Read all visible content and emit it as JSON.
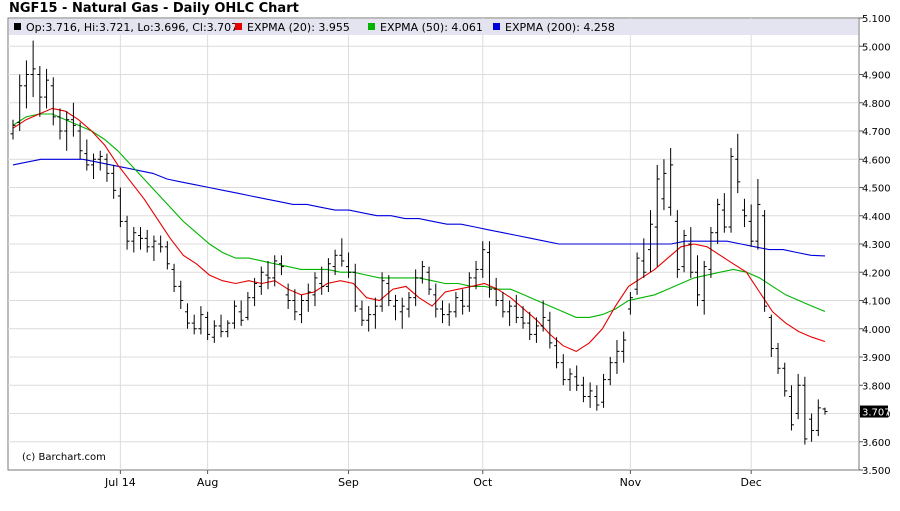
{
  "chart_data": {
    "type": "ohlc",
    "title": "NGF15 - Natural Gas - Daily OHLC Chart",
    "credit": "(c) Barchart.com",
    "legend": [
      {
        "key": "quote",
        "label": "Op:3.716, Hi:3.721, Lo:3.696, Cl:3.707",
        "color": "#000000"
      },
      {
        "key": "ema20",
        "label": "EXPMA (20): 3.955",
        "color": "#e60000"
      },
      {
        "key": "ema50",
        "label": "EXPMA (50): 4.061",
        "color": "#00b400"
      },
      {
        "key": "ema200",
        "label": "EXPMA (200): 4.258",
        "color": "#0000dd"
      }
    ],
    "last_price_label": "3.707",
    "ylim": [
      3.5,
      5.1
    ],
    "y_ticks": [
      "3.500",
      "3.600",
      "3.700",
      "3.800",
      "3.900",
      "4.000",
      "4.100",
      "4.200",
      "4.300",
      "4.400",
      "4.500",
      "4.600",
      "4.700",
      "4.800",
      "4.900",
      "5.000",
      "5.100"
    ],
    "x_ticks": [
      {
        "label": "Jul 14",
        "index": 16
      },
      {
        "label": "Aug",
        "index": 29
      },
      {
        "label": "Sep",
        "index": 50
      },
      {
        "label": "Oct",
        "index": 70
      },
      {
        "label": "Nov",
        "index": 92
      },
      {
        "label": "Dec",
        "index": 110
      }
    ],
    "bar_count": 122,
    "bars": [
      [
        4.69,
        4.74,
        4.67,
        4.72
      ],
      [
        4.73,
        4.9,
        4.7,
        4.86
      ],
      [
        4.86,
        4.95,
        4.78,
        4.9
      ],
      [
        4.9,
        5.02,
        4.82,
        4.92
      ],
      [
        4.9,
        4.93,
        4.75,
        4.82
      ],
      [
        4.82,
        4.92,
        4.78,
        4.88
      ],
      [
        4.86,
        4.89,
        4.72,
        4.75
      ],
      [
        4.75,
        4.78,
        4.67,
        4.7
      ],
      [
        4.7,
        4.77,
        4.63,
        4.74
      ],
      [
        4.74,
        4.8,
        4.68,
        4.72
      ],
      [
        4.7,
        4.73,
        4.6,
        4.63
      ],
      [
        4.62,
        4.67,
        4.56,
        4.58
      ],
      [
        4.58,
        4.62,
        4.53,
        4.6
      ],
      [
        4.6,
        4.63,
        4.56,
        4.61
      ],
      [
        4.6,
        4.62,
        4.52,
        4.55
      ],
      [
        4.55,
        4.58,
        4.46,
        4.49
      ],
      [
        4.47,
        4.5,
        4.36,
        4.38
      ],
      [
        4.38,
        4.4,
        4.28,
        4.31
      ],
      [
        4.31,
        4.36,
        4.27,
        4.34
      ],
      [
        4.33,
        4.36,
        4.28,
        4.32
      ],
      [
        4.32,
        4.35,
        4.27,
        4.29
      ],
      [
        4.29,
        4.33,
        4.24,
        4.31
      ],
      [
        4.3,
        4.33,
        4.27,
        4.29
      ],
      [
        4.29,
        4.31,
        4.21,
        4.23
      ],
      [
        4.21,
        4.23,
        4.13,
        4.15
      ],
      [
        4.15,
        4.17,
        4.07,
        4.1
      ],
      [
        4.06,
        4.09,
        4.0,
        4.02
      ],
      [
        4.02,
        4.05,
        3.98,
        4.0
      ],
      [
        4.0,
        4.08,
        3.98,
        4.05
      ],
      [
        4.04,
        4.06,
        3.96,
        3.98
      ],
      [
        3.97,
        4.03,
        3.95,
        4.01
      ],
      [
        4.01,
        4.05,
        3.97,
        3.99
      ],
      [
        3.99,
        4.03,
        3.97,
        4.02
      ],
      [
        4.02,
        4.1,
        4.0,
        4.08
      ],
      [
        4.06,
        4.1,
        4.01,
        4.03
      ],
      [
        4.04,
        4.13,
        4.03,
        4.11
      ],
      [
        4.11,
        4.18,
        4.08,
        4.16
      ],
      [
        4.15,
        4.22,
        4.12,
        4.2
      ],
      [
        4.19,
        4.24,
        4.14,
        4.18
      ],
      [
        4.18,
        4.26,
        4.15,
        4.24
      ],
      [
        4.23,
        4.26,
        4.19,
        4.22
      ],
      [
        4.12,
        4.16,
        4.07,
        4.1
      ],
      [
        4.1,
        4.14,
        4.03,
        4.06
      ],
      [
        4.05,
        4.12,
        4.02,
        4.1
      ],
      [
        4.1,
        4.16,
        4.06,
        4.13
      ],
      [
        4.12,
        4.2,
        4.08,
        4.18
      ],
      [
        4.16,
        4.22,
        4.12,
        4.15
      ],
      [
        4.15,
        4.25,
        4.13,
        4.23
      ],
      [
        4.22,
        4.28,
        4.19,
        4.26
      ],
      [
        4.26,
        4.32,
        4.22,
        4.24
      ],
      [
        4.22,
        4.27,
        4.18,
        4.2
      ],
      [
        4.2,
        4.23,
        4.06,
        4.08
      ],
      [
        4.07,
        4.1,
        4.01,
        4.03
      ],
      [
        4.03,
        4.08,
        3.99,
        4.05
      ],
      [
        4.05,
        4.11,
        4.0,
        4.08
      ],
      [
        4.08,
        4.2,
        4.06,
        4.17
      ],
      [
        4.16,
        4.19,
        4.08,
        4.1
      ],
      [
        4.08,
        4.12,
        4.03,
        4.1
      ],
      [
        4.06,
        4.11,
        4.0,
        4.08
      ],
      [
        4.07,
        4.13,
        4.04,
        4.11
      ],
      [
        4.11,
        4.21,
        4.08,
        4.18
      ],
      [
        4.18,
        4.24,
        4.16,
        4.22
      ],
      [
        4.2,
        4.22,
        4.12,
        4.14
      ],
      [
        4.12,
        4.16,
        4.04,
        4.07
      ],
      [
        4.07,
        4.1,
        4.02,
        4.05
      ],
      [
        4.05,
        4.09,
        4.01,
        4.06
      ],
      [
        4.06,
        4.13,
        4.04,
        4.11
      ],
      [
        4.1,
        4.14,
        4.05,
        4.08
      ],
      [
        4.08,
        4.2,
        4.06,
        4.18
      ],
      [
        4.18,
        4.24,
        4.14,
        4.21
      ],
      [
        4.21,
        4.31,
        4.18,
        4.28
      ],
      [
        4.27,
        4.31,
        4.11,
        4.14
      ],
      [
        4.14,
        4.18,
        4.08,
        4.1
      ],
      [
        4.1,
        4.13,
        4.04,
        4.06
      ],
      [
        4.06,
        4.1,
        4.01,
        4.08
      ],
      [
        4.08,
        4.12,
        4.02,
        4.04
      ],
      [
        4.04,
        4.08,
        4.0,
        4.02
      ],
      [
        4.02,
        4.06,
        3.96,
        3.98
      ],
      [
        3.98,
        4.04,
        3.95,
        4.01
      ],
      [
        4.01,
        4.1,
        3.99,
        4.04
      ],
      [
        4.03,
        4.06,
        3.93,
        3.95
      ],
      [
        3.94,
        3.97,
        3.86,
        3.88
      ],
      [
        3.88,
        3.91,
        3.8,
        3.82
      ],
      [
        3.82,
        3.86,
        3.78,
        3.84
      ],
      [
        3.83,
        3.87,
        3.78,
        3.8
      ],
      [
        3.8,
        3.83,
        3.74,
        3.76
      ],
      [
        3.76,
        3.81,
        3.72,
        3.78
      ],
      [
        3.76,
        3.8,
        3.71,
        3.73
      ],
      [
        3.74,
        3.84,
        3.72,
        3.82
      ],
      [
        3.82,
        3.9,
        3.8,
        3.88
      ],
      [
        3.88,
        3.96,
        3.84,
        3.92
      ],
      [
        3.92,
        3.99,
        3.88,
        3.96
      ],
      [
        4.07,
        4.13,
        4.05,
        4.11
      ],
      [
        4.14,
        4.27,
        4.12,
        4.25
      ],
      [
        4.24,
        4.32,
        4.18,
        4.2
      ],
      [
        4.28,
        4.42,
        4.2,
        4.37
      ],
      [
        4.36,
        4.58,
        4.22,
        4.53
      ],
      [
        4.46,
        4.6,
        4.42,
        4.55
      ],
      [
        4.43,
        4.64,
        4.4,
        4.58
      ],
      [
        4.38,
        4.42,
        4.18,
        4.21
      ],
      [
        4.22,
        4.35,
        4.2,
        4.33
      ],
      [
        4.3,
        4.36,
        4.18,
        4.2
      ],
      [
        4.2,
        4.26,
        4.08,
        4.12
      ],
      [
        4.1,
        4.24,
        4.05,
        4.22
      ],
      [
        4.21,
        4.36,
        4.18,
        4.34
      ],
      [
        4.34,
        4.46,
        4.3,
        4.44
      ],
      [
        4.42,
        4.48,
        4.34,
        4.36
      ],
      [
        4.36,
        4.64,
        4.34,
        4.61
      ],
      [
        4.6,
        4.69,
        4.48,
        4.52
      ],
      [
        4.42,
        4.46,
        4.36,
        4.4
      ],
      [
        4.38,
        4.44,
        4.29,
        4.31
      ],
      [
        4.31,
        4.53,
        4.28,
        4.44
      ],
      [
        4.4,
        4.42,
        4.06,
        4.08
      ],
      [
        4.04,
        4.05,
        3.9,
        3.93
      ],
      [
        3.93,
        3.95,
        3.84,
        3.86
      ],
      [
        3.86,
        3.88,
        3.76,
        3.78
      ],
      [
        3.76,
        3.8,
        3.64,
        3.66
      ],
      [
        3.7,
        3.84,
        3.68,
        3.8
      ],
      [
        3.8,
        3.83,
        3.59,
        3.61
      ],
      [
        3.68,
        3.7,
        3.6,
        3.64
      ],
      [
        3.64,
        3.75,
        3.62,
        3.72
      ],
      [
        3.716,
        3.721,
        3.696,
        3.707
      ]
    ],
    "ema20": [
      4.71,
      4.74,
      4.76,
      4.78,
      4.77,
      4.74,
      4.7,
      4.65,
      4.58,
      4.52,
      4.46,
      4.39,
      4.32,
      4.26,
      4.23,
      4.19,
      4.17,
      4.16,
      4.17,
      4.16,
      4.17,
      4.14,
      4.12,
      4.13,
      4.16,
      4.17,
      4.16,
      4.11,
      4.1,
      4.14,
      4.15,
      4.11,
      4.08,
      4.13,
      4.14,
      4.15,
      4.16,
      4.14,
      4.11,
      4.07,
      4.03,
      3.98,
      3.94,
      3.92,
      3.95,
      4.0,
      4.08,
      4.15,
      4.18,
      4.21,
      4.25,
      4.29,
      4.3,
      4.29,
      4.26,
      4.23,
      4.2,
      4.13,
      4.06,
      4.02,
      3.99,
      3.97,
      3.955
    ],
    "ema50": [
      4.72,
      4.75,
      4.76,
      4.76,
      4.74,
      4.72,
      4.7,
      4.67,
      4.63,
      4.58,
      4.53,
      4.48,
      4.43,
      4.38,
      4.34,
      4.3,
      4.27,
      4.25,
      4.25,
      4.24,
      4.23,
      4.22,
      4.21,
      4.21,
      4.21,
      4.2,
      4.2,
      4.19,
      4.18,
      4.18,
      4.18,
      4.18,
      4.17,
      4.16,
      4.16,
      4.15,
      4.15,
      4.14,
      4.14,
      4.12,
      4.1,
      4.08,
      4.06,
      4.04,
      4.04,
      4.05,
      4.07,
      4.1,
      4.11,
      4.12,
      4.14,
      4.16,
      4.18,
      4.19,
      4.2,
      4.21,
      4.2,
      4.18,
      4.15,
      4.12,
      4.1,
      4.08,
      4.061
    ],
    "ema200": [
      4.58,
      4.59,
      4.6,
      4.6,
      4.6,
      4.6,
      4.59,
      4.58,
      4.57,
      4.56,
      4.55,
      4.53,
      4.52,
      4.51,
      4.5,
      4.49,
      4.48,
      4.47,
      4.46,
      4.45,
      4.44,
      4.44,
      4.43,
      4.42,
      4.42,
      4.41,
      4.4,
      4.4,
      4.39,
      4.39,
      4.38,
      4.37,
      4.37,
      4.36,
      4.35,
      4.34,
      4.33,
      4.32,
      4.31,
      4.3,
      4.3,
      4.3,
      4.3,
      4.3,
      4.3,
      4.3,
      4.3,
      4.3,
      4.31,
      4.31,
      4.31,
      4.31,
      4.3,
      4.29,
      4.28,
      4.28,
      4.27,
      4.26,
      4.258
    ]
  }
}
